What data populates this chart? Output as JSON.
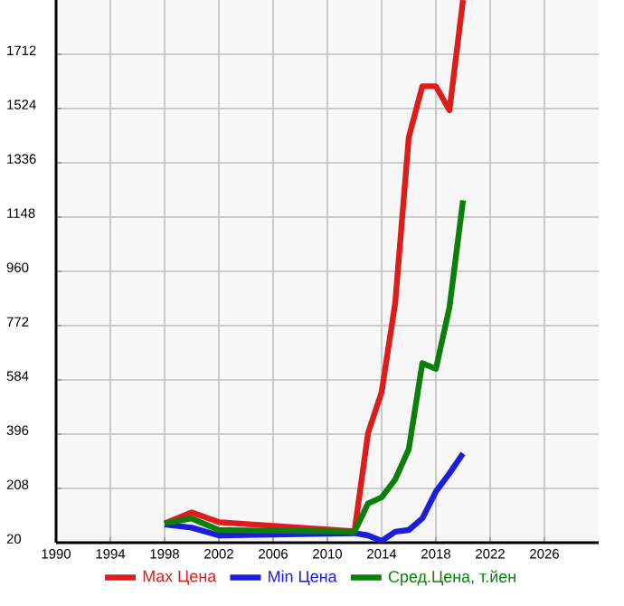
{
  "chart_data": {
    "type": "line",
    "x": [
      1998,
      2000,
      2002,
      2012,
      2013,
      2014,
      2015,
      2016,
      2017,
      2018,
      2019,
      2020
    ],
    "series": [
      {
        "name": "Max Цена",
        "color": "#dd1c1c",
        "values": [
          87,
          125,
          91,
          59,
          400,
          542,
          850,
          1424,
          1601,
          1601,
          1518,
          1900
        ]
      },
      {
        "name": "Min Цена",
        "color": "#1c1cdd",
        "values": [
          83,
          72,
          45,
          53,
          45,
          26,
          58,
          64,
          104,
          197,
          260,
          329
        ]
      },
      {
        "name": "Сред.Цена, т.йен",
        "color": "#0a800a",
        "values": [
          87,
          104,
          64,
          58,
          156,
          177,
          239,
          344,
          642,
          622,
          835,
          1206
        ]
      }
    ],
    "xlim": [
      1990,
      2030
    ],
    "xticks": [
      1990,
      1994,
      1998,
      2002,
      2006,
      2010,
      2014,
      2018,
      2022,
      2026
    ],
    "ylim": [
      20,
      1900
    ],
    "yticks": [
      20,
      208,
      396,
      584,
      772,
      960,
      1148,
      1336,
      1524,
      1712
    ],
    "grid": true,
    "legend": "bottom",
    "marker": "none",
    "line_style": "solid"
  }
}
